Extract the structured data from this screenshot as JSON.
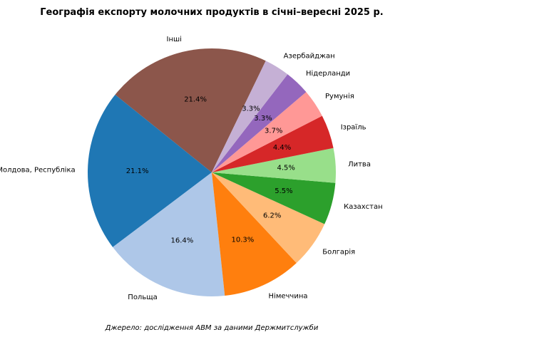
{
  "chart_data": {
    "type": "pie",
    "title": "Географія експорту молочних продуктів в січні–вересні 2025 р.",
    "source_note": "Джерело: дослідження АВМ за даними Держмитслужби",
    "slices": [
      {
        "label": "Інші",
        "value": 21.4,
        "pct_label": "21.4%",
        "color": "#8c564b"
      },
      {
        "label": "Молдова, Республіка",
        "value": 21.1,
        "pct_label": "21.1%",
        "color": "#1f77b4"
      },
      {
        "label": "Польща",
        "value": 16.4,
        "pct_label": "16.4%",
        "color": "#aec7e8"
      },
      {
        "label": "Німеччина",
        "value": 10.3,
        "pct_label": "10.3%",
        "color": "#ff7f0e"
      },
      {
        "label": "Болгарія",
        "value": 6.2,
        "pct_label": "6.2%",
        "color": "#ffbb78"
      },
      {
        "label": "Казахстан",
        "value": 5.5,
        "pct_label": "5.5%",
        "color": "#2ca02c"
      },
      {
        "label": "Литва",
        "value": 4.5,
        "pct_label": "4.5%",
        "color": "#98df8a"
      },
      {
        "label": "Ізраїль",
        "value": 4.4,
        "pct_label": "4.4%",
        "color": "#d62728"
      },
      {
        "label": "Румунія",
        "value": 3.7,
        "pct_label": "3.7%",
        "color": "#ff9896"
      },
      {
        "label": "Нідерланди",
        "value": 3.3,
        "pct_label": "3.3%",
        "color": "#9467bd"
      },
      {
        "label": "Азербайджан",
        "value": 3.3,
        "pct_label": "3.3%",
        "color": "#c5b0d5"
      }
    ]
  }
}
